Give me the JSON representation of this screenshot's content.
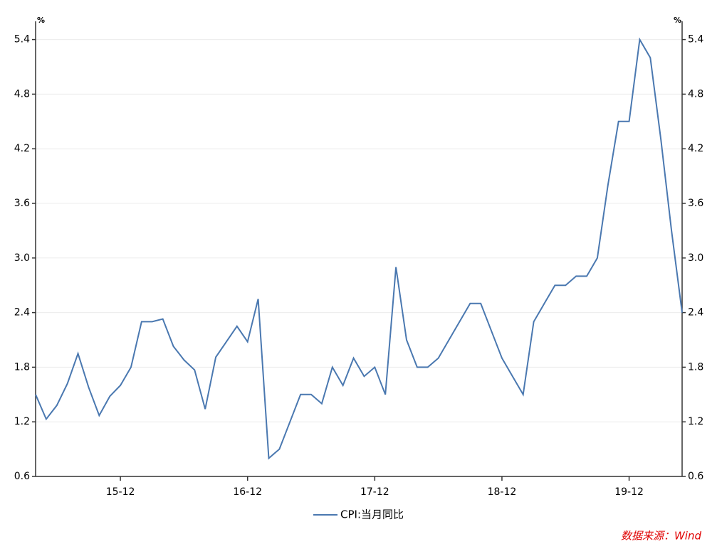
{
  "chart_data": {
    "type": "line",
    "ylabel": "%",
    "y2label": "%",
    "x": [
      "15-04",
      "15-05",
      "15-06",
      "15-07",
      "15-08",
      "15-09",
      "15-10",
      "15-11",
      "15-12",
      "16-01",
      "16-02",
      "16-03",
      "16-04",
      "16-05",
      "16-06",
      "16-07",
      "16-08",
      "16-09",
      "16-10",
      "16-11",
      "16-12",
      "17-01",
      "17-02",
      "17-03",
      "17-04",
      "17-05",
      "17-06",
      "17-07",
      "17-08",
      "17-09",
      "17-10",
      "17-11",
      "17-12",
      "18-01",
      "18-02",
      "18-03",
      "18-04",
      "18-05",
      "18-06",
      "18-07",
      "18-08",
      "18-09",
      "18-10",
      "18-11",
      "18-12",
      "19-01",
      "19-02",
      "19-03",
      "19-04",
      "19-05",
      "19-06",
      "19-07",
      "19-08",
      "19-09",
      "19-10",
      "19-11",
      "19-12",
      "20-01",
      "20-02",
      "20-03",
      "20-04",
      "20-05"
    ],
    "xticks": [
      "15-12",
      "16-12",
      "17-12",
      "18-12",
      "19-12"
    ],
    "series": [
      {
        "name": "CPI:当月同比",
        "color": "#4a78b0",
        "values": [
          1.5,
          1.23,
          1.38,
          1.62,
          1.95,
          1.58,
          1.27,
          1.48,
          1.6,
          1.8,
          2.3,
          2.3,
          2.33,
          2.03,
          1.88,
          1.77,
          1.34,
          1.91,
          2.08,
          2.25,
          2.08,
          2.55,
          0.8,
          0.9,
          1.2,
          1.5,
          1.5,
          1.4,
          1.8,
          1.6,
          1.9,
          1.7,
          1.8,
          1.5,
          2.9,
          2.1,
          1.8,
          1.8,
          1.9,
          2.1,
          2.3,
          2.5,
          2.5,
          2.2,
          1.9,
          1.7,
          1.5,
          2.3,
          2.5,
          2.7,
          2.7,
          2.8,
          2.8,
          3.0,
          3.8,
          4.5,
          4.5,
          5.4,
          5.2,
          4.3,
          3.3,
          2.4
        ]
      }
    ],
    "ylim": [
      0.6,
      5.6
    ],
    "yticks": [
      0.6,
      1.2,
      1.8,
      2.4,
      {
        "value": 3,
        "label": "3.0"
      },
      3.6,
      4.2,
      4.8,
      5.4
    ],
    "y2lim": [
      0.6,
      5.6
    ],
    "y2ticks": [
      0.6,
      1.2,
      1.8,
      2.4,
      {
        "value": 3,
        "label": "3.0"
      },
      3.6,
      4.2,
      4.8,
      5.4
    ],
    "grid": true,
    "legend": "bottom",
    "source": "数据来源：Wind"
  }
}
